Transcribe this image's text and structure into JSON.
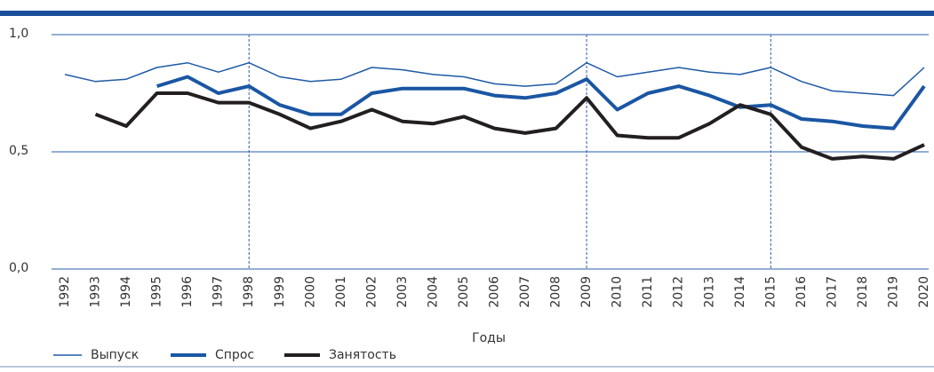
{
  "chart_data": {
    "type": "line",
    "x_label": "Годы",
    "categories": [
      "1992",
      "1993",
      "1994",
      "1995",
      "1996",
      "1997",
      "1998",
      "1999",
      "2000",
      "2001",
      "2002",
      "2003",
      "2004",
      "2005",
      "2006",
      "2007",
      "2008",
      "2009",
      "2010",
      "2011",
      "2012",
      "2013",
      "2014",
      "2015",
      "2016",
      "2017",
      "2018",
      "2019",
      "2020"
    ],
    "series": [
      {
        "name": "Выпуск",
        "color": "#1f5aa6",
        "values": [
          0.83,
          0.8,
          0.81,
          0.86,
          0.88,
          0.84,
          0.88,
          0.82,
          0.8,
          0.81,
          0.86,
          0.85,
          0.83,
          0.82,
          0.79,
          0.78,
          0.79,
          0.88,
          0.82,
          0.84,
          0.86,
          0.84,
          0.83,
          0.86,
          0.8,
          0.76,
          0.75,
          0.74,
          0.86
        ]
      },
      {
        "name": "Спрос",
        "color": "#1a56a3",
        "values": [
          null,
          null,
          null,
          0.78,
          0.82,
          0.75,
          0.78,
          0.7,
          0.66,
          0.66,
          0.75,
          0.77,
          0.77,
          0.77,
          0.74,
          0.73,
          0.75,
          0.81,
          0.68,
          0.75,
          0.78,
          0.74,
          0.69,
          0.7,
          0.64,
          0.63,
          0.61,
          0.6,
          0.78
        ]
      },
      {
        "name": "Занятость",
        "color": "#231f20",
        "values": [
          null,
          0.66,
          0.61,
          0.75,
          0.75,
          0.71,
          0.71,
          0.66,
          0.6,
          0.63,
          0.68,
          0.63,
          0.62,
          0.65,
          0.6,
          0.58,
          0.6,
          0.73,
          0.57,
          0.56,
          0.56,
          0.62,
          0.7,
          0.66,
          0.52,
          0.47,
          0.48,
          0.47,
          0.53
        ]
      }
    ],
    "vlines": [
      "1998",
      "2009",
      "2015"
    ],
    "ylim": [
      0,
      1
    ],
    "yticks": [
      {
        "value": 0,
        "label": "0,0"
      },
      {
        "value": 0.5,
        "label": "0,5"
      },
      {
        "value": 1,
        "label": "1,0"
      }
    ],
    "grid": true
  }
}
